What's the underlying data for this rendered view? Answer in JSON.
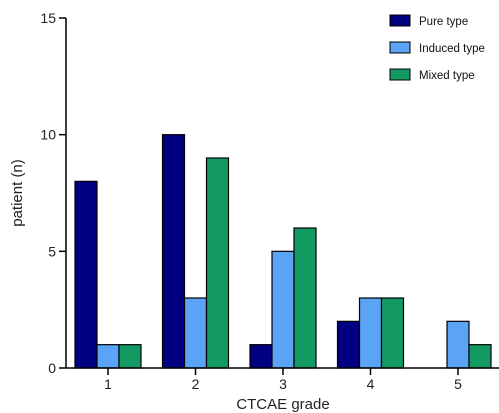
{
  "chart_data": {
    "type": "bar",
    "xlabel": "CTCAE grade",
    "ylabel": "patient (n)",
    "categories": [
      "1",
      "2",
      "3",
      "4",
      "5"
    ],
    "ylim": [
      0,
      15
    ],
    "yticks": [
      "0",
      "5",
      "10",
      "15"
    ],
    "grid": false,
    "legend_position": "top-right",
    "series": [
      {
        "name": "Pure type",
        "color": "#000080",
        "values": [
          8,
          10,
          1,
          2,
          0
        ]
      },
      {
        "name": "Induced type",
        "color": "#5aa3f5",
        "values": [
          1,
          3,
          5,
          3,
          2
        ]
      },
      {
        "name": "Mixed type",
        "color": "#139a63",
        "values": [
          1,
          9,
          6,
          3,
          1
        ]
      }
    ]
  }
}
